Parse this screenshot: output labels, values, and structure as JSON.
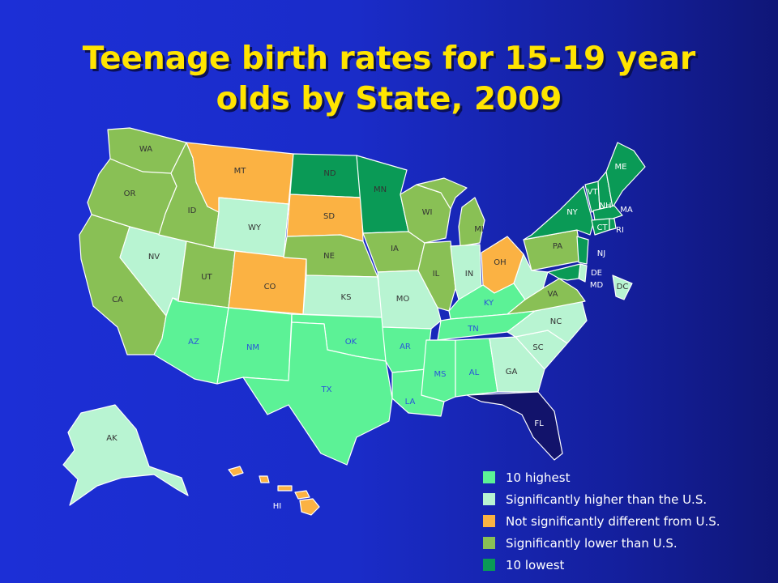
{
  "title": {
    "line1": "Teenage birth rates for 15-19 year",
    "line2": "olds by State, 2009"
  },
  "colors": {
    "ten_highest": "#5cf296",
    "sig_higher": "#b8f4d2",
    "not_sig": "#fbb243",
    "sig_lower": "#89c055",
    "ten_lowest": "#0a9a56",
    "florida": "#12136b"
  },
  "legend": [
    {
      "label": "10 highest",
      "color": "#5cf296"
    },
    {
      "label": "Significantly higher than the U.S.",
      "color": "#b8f4d2"
    },
    {
      "label": "Not significantly different from U.S.",
      "color": "#fbb243"
    },
    {
      "label": "Significantly lower than U.S.",
      "color": "#89c055"
    },
    {
      "label": "10 lowest",
      "color": "#0a9a56"
    }
  ],
  "states": {
    "WA": "WA",
    "OR": "OR",
    "CA": "CA",
    "ID": "ID",
    "NV": "NV",
    "MT": "MT",
    "WY": "WY",
    "UT": "UT",
    "CO": "CO",
    "AZ": "AZ",
    "NM": "NM",
    "ND": "ND",
    "SD": "SD",
    "NE": "NE",
    "KS": "KS",
    "OK": "OK",
    "TX": "TX",
    "MN": "MN",
    "IA": "IA",
    "MO": "MO",
    "AR": "AR",
    "LA": "LA",
    "WI": "WI",
    "IL": "IL",
    "MI": "MI",
    "IN": "IN",
    "OH": "OH",
    "KY": "KY",
    "TN": "TN",
    "MS": "MS",
    "AL": "AL",
    "GA": "GA",
    "FL": "FL",
    "SC": "SC",
    "NC": "NC",
    "VA": "VA",
    "PA": "PA",
    "NY": "NY",
    "VT": "VT",
    "NH": "NH",
    "ME": "ME",
    "MA": "MA",
    "CT": "CT",
    "RI": "RI",
    "NJ": "NJ",
    "DE": "DE",
    "MD": "MD",
    "DC": "DC",
    "AK": "AK",
    "HI": "HI"
  }
}
